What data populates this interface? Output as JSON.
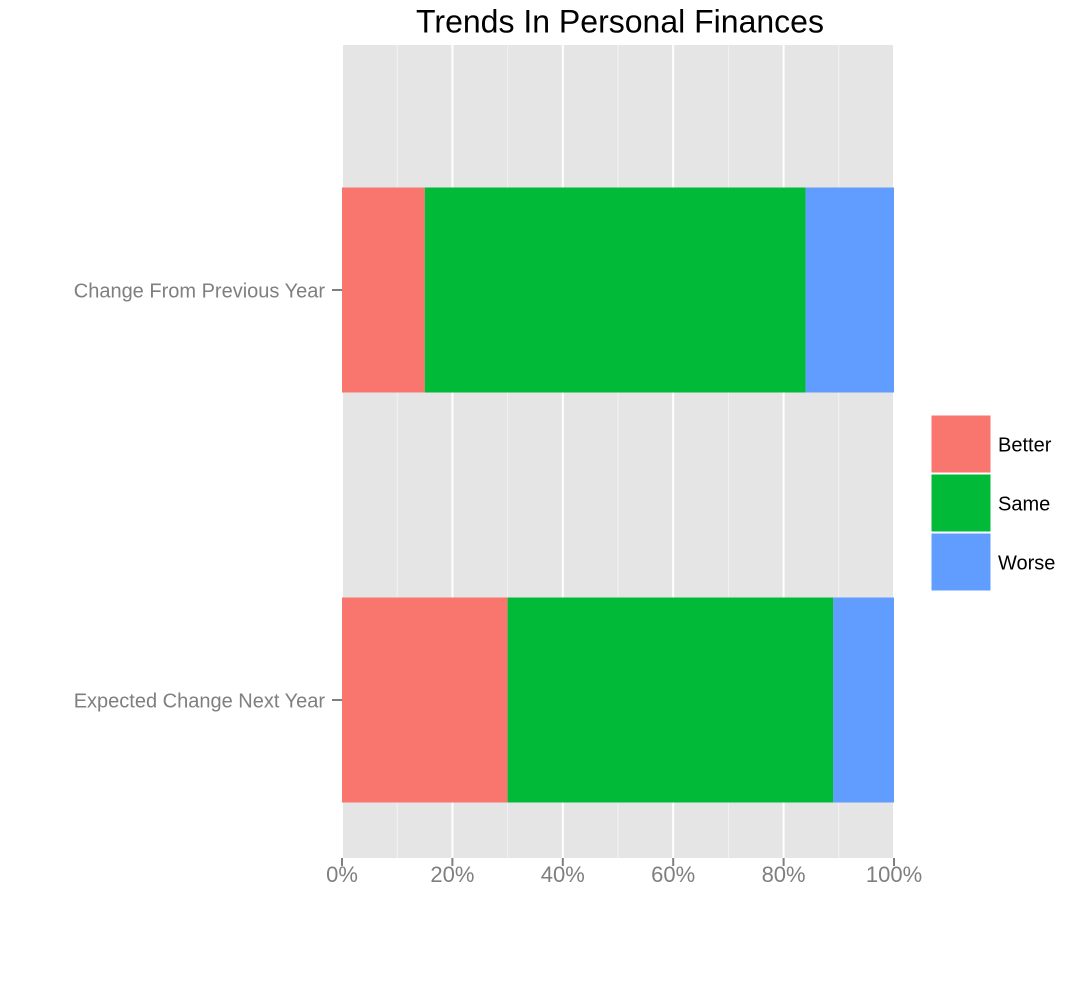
{
  "chart_data": {
    "type": "stacked_bar_horizontal",
    "title": "Trends In Personal Finances",
    "categories": [
      "Change From Previous Year",
      "Expected Change Next Year"
    ],
    "series": [
      {
        "name": "Better",
        "color": "#F8766D",
        "values": [
          15,
          30
        ]
      },
      {
        "name": "Same",
        "color": "#00BA38",
        "values": [
          69,
          59
        ]
      },
      {
        "name": "Worse",
        "color": "#619CFF",
        "values": [
          16,
          11
        ]
      }
    ],
    "xlim": [
      0,
      100
    ],
    "xticks": [
      {
        "value": 0,
        "label": "0%"
      },
      {
        "value": 20,
        "label": "20%"
      },
      {
        "value": 40,
        "label": "40%"
      },
      {
        "value": 60,
        "label": "60%"
      },
      {
        "value": 80,
        "label": "80%"
      },
      {
        "value": 100,
        "label": "100%"
      }
    ],
    "minor_xticks": [
      10,
      30,
      50,
      70,
      90
    ],
    "grid": true,
    "legend": "right"
  }
}
